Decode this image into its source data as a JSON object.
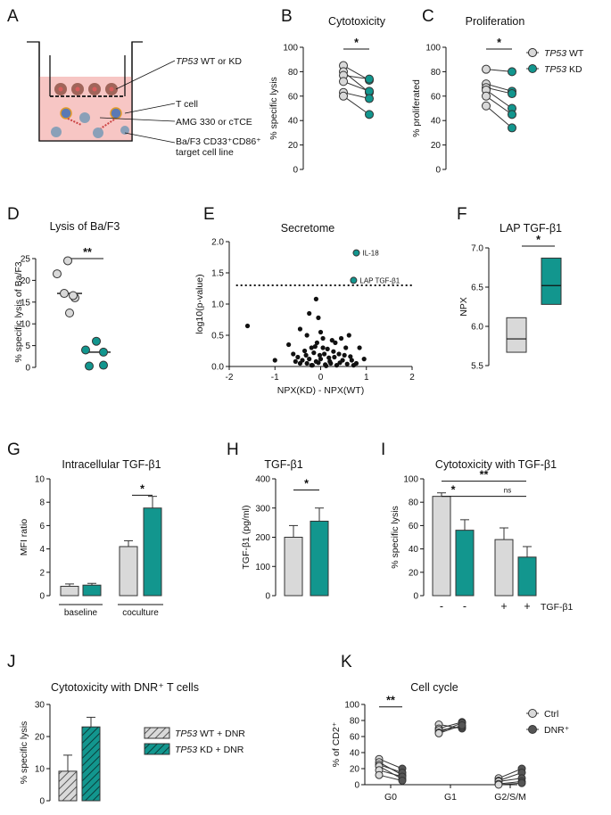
{
  "colors": {
    "wt": "#d9d9d9",
    "kd": "#12968e",
    "dark": "#333333",
    "bg_pink": "#f7c6c4"
  },
  "panels": {
    "A": {
      "letter": "A",
      "labels": {
        "wt_kd_italic": "TP53",
        "wt_kd_rest": " WT or KD",
        "tcell": "T cell",
        "amg": "AMG 330 or cTCE",
        "baf3_line1": "Ba/F3 CD33⁺CD86⁺",
        "baf3_line2": "target cell line"
      }
    },
    "B": {
      "letter": "B",
      "title": "Cytotoxicity",
      "ylabel": "% specific lysis",
      "yticks": [
        "0",
        "20",
        "40",
        "60",
        "80",
        "100"
      ],
      "sig": "*"
    },
    "C": {
      "letter": "C",
      "title": "Proliferation",
      "ylabel": "% proliferated",
      "yticks": [
        "0",
        "20",
        "40",
        "60",
        "80",
        "100"
      ],
      "sig": "*",
      "legend": [
        {
          "italic": "TP53",
          "rest": " WT"
        },
        {
          "italic": "TP53",
          "rest": " KD"
        }
      ]
    },
    "D": {
      "letter": "D",
      "title": "Lysis of Ba/F3",
      "ylabel": "% specific lysis of Ba/F3",
      "yticks": [
        "0",
        "5",
        "10",
        "15",
        "20",
        "25"
      ],
      "sig": "**"
    },
    "E": {
      "letter": "E",
      "title": "Secretome",
      "ylabel": "log10(p-value)",
      "xlabel": "NPX(KD) - NPX(WT)",
      "yticks": [
        "0.0",
        "0.5",
        "1.0",
        "1.5",
        "2.0"
      ],
      "xticks": [
        "-2",
        "-1",
        "0",
        "1",
        "2"
      ],
      "ann_il18": "IL-18",
      "ann_lap": "LAP TGF-β1"
    },
    "F": {
      "letter": "F",
      "title": "LAP TGF-β1",
      "ylabel": "NPX",
      "yticks": [
        "5.5",
        "6.0",
        "6.5",
        "7.0"
      ],
      "sig": "*"
    },
    "G": {
      "letter": "G",
      "title": "Intracellular TGF-β1",
      "ylabel": "MFI ratio",
      "yticks": [
        "0",
        "2",
        "4",
        "6",
        "8",
        "10"
      ],
      "groups": [
        "baseline",
        "coculture"
      ],
      "sig": "*"
    },
    "H": {
      "letter": "H",
      "title": "TGF-β1",
      "ylabel": "TGF-β1 (pg/ml)",
      "yticks": [
        "0",
        "100",
        "200",
        "300",
        "400"
      ],
      "sig": "*"
    },
    "I": {
      "letter": "I",
      "title": "Cytotoxicity with TGF-β1",
      "ylabel": "% specific lysis",
      "yticks": [
        "0",
        "20",
        "40",
        "60",
        "80",
        "100"
      ],
      "xsigns": [
        "-",
        "-",
        "+",
        "+"
      ],
      "xlabel_right": "TGF-β1",
      "sig1": "*",
      "sig2": "**",
      "sig3": "ns"
    },
    "J": {
      "letter": "J",
      "title": "Cytotoxicity with DNR⁺ T cells",
      "ylabel": "% specific lysis",
      "yticks": [
        "0",
        "10",
        "20",
        "30"
      ],
      "legend": [
        {
          "italic": "TP53",
          "rest": " WT + DNR"
        },
        {
          "italic": "TP53",
          "rest": " KD + DNR"
        }
      ]
    },
    "K": {
      "letter": "K",
      "title": "Cell cycle",
      "ylabel": "% of CD2⁺",
      "yticks": [
        "0",
        "20",
        "40",
        "60",
        "80",
        "100"
      ],
      "categories": [
        "G0",
        "G1",
        "G2/S/M"
      ],
      "sig": "**",
      "legend": [
        "Ctrl",
        "DNR⁺"
      ]
    }
  },
  "chart_data": [
    {
      "panel": "B",
      "type": "scatter",
      "title": "Cytotoxicity",
      "ylabel": "% specific lysis",
      "ylim": [
        0,
        100
      ],
      "categories": [
        "TP53 WT",
        "TP53 KD"
      ],
      "pairs": [
        [
          85,
          73
        ],
        [
          80,
          63
        ],
        [
          77,
          74
        ],
        [
          72,
          64
        ],
        [
          63,
          58
        ],
        [
          60,
          45
        ]
      ]
    },
    {
      "panel": "C",
      "type": "scatter",
      "title": "Proliferation",
      "ylabel": "% proliferated",
      "ylim": [
        0,
        100
      ],
      "categories": [
        "TP53 WT",
        "TP53 KD"
      ],
      "pairs": [
        [
          82,
          80
        ],
        [
          70,
          64
        ],
        [
          67,
          62
        ],
        [
          65,
          50
        ],
        [
          60,
          45
        ],
        [
          52,
          34
        ]
      ]
    },
    {
      "panel": "D",
      "type": "scatter",
      "title": "Lysis of Ba/F3",
      "ylabel": "% specific lysis of Ba/F3",
      "ylim": [
        0,
        25
      ],
      "series": [
        {
          "name": "TP53 WT",
          "values": [
            24.5,
            21.5,
            17,
            16,
            16.5,
            12.5
          ],
          "median": 17
        },
        {
          "name": "TP53 KD",
          "values": [
            6,
            4,
            3.5,
            0.3,
            0.5
          ],
          "median": 3.5
        }
      ]
    },
    {
      "panel": "E",
      "type": "scatter",
      "title": "Secretome",
      "xlabel": "NPX(KD) - NPX(WT)",
      "ylabel": "log10(p-value)",
      "xlim": [
        -2,
        2
      ],
      "ylim": [
        0,
        2
      ],
      "threshold": 1.3,
      "highlight": [
        {
          "label": "IL-18",
          "x": 0.78,
          "y": 1.82
        },
        {
          "label": "LAP TGF-β1",
          "x": 0.72,
          "y": 1.38
        }
      ],
      "points": [
        [
          -1.6,
          0.65
        ],
        [
          -1.0,
          0.1
        ],
        [
          -0.45,
          0.6
        ],
        [
          -0.3,
          0.5
        ],
        [
          -0.25,
          0.85
        ],
        [
          -0.1,
          1.08
        ],
        [
          -0.05,
          0.78
        ],
        [
          0.0,
          0.55
        ],
        [
          -0.08,
          0.38
        ],
        [
          0.05,
          0.45
        ],
        [
          -0.2,
          0.3
        ],
        [
          -0.35,
          0.25
        ],
        [
          -0.5,
          0.15
        ],
        [
          -0.4,
          0.1
        ],
        [
          -0.3,
          0.05
        ],
        [
          -0.2,
          0.02
        ],
        [
          -0.1,
          0.08
        ],
        [
          0.0,
          0.12
        ],
        [
          0.08,
          0.2
        ],
        [
          0.15,
          0.28
        ],
        [
          0.25,
          0.42
        ],
        [
          0.32,
          0.38
        ],
        [
          0.45,
          0.45
        ],
        [
          0.55,
          0.3
        ],
        [
          0.62,
          0.5
        ],
        [
          0.4,
          0.2
        ],
        [
          0.3,
          0.15
        ],
        [
          0.2,
          0.08
        ],
        [
          0.1,
          0.03
        ],
        [
          -0.02,
          0.18
        ],
        [
          -0.15,
          0.22
        ],
        [
          -0.25,
          0.12
        ],
        [
          -0.12,
          0.32
        ],
        [
          -0.45,
          0.05
        ],
        [
          -0.6,
          0.2
        ],
        [
          -0.7,
          0.35
        ],
        [
          0.12,
          0.01
        ],
        [
          0.22,
          0.05
        ],
        [
          0.35,
          0.02
        ],
        [
          0.48,
          0.1
        ],
        [
          0.52,
          0.18
        ],
        [
          0.68,
          0.1
        ],
        [
          0.78,
          0.05
        ],
        [
          0.85,
          0.3
        ],
        [
          0.95,
          0.12
        ],
        [
          0.72,
          0.02
        ],
        [
          0.05,
          0.3
        ],
        [
          -0.05,
          0.06
        ],
        [
          0.18,
          0.14
        ],
        [
          -0.32,
          0.18
        ],
        [
          -0.55,
          0.08
        ],
        [
          0.28,
          0.24
        ],
        [
          0.42,
          0.06
        ],
        [
          0.58,
          0.04
        ],
        [
          0.65,
          0.16
        ],
        [
          -0.18,
          0.02
        ]
      ]
    },
    {
      "panel": "F",
      "type": "box",
      "title": "LAP TGF-β1",
      "ylabel": "NPX",
      "ylim": [
        5.5,
        7.0
      ],
      "series": [
        {
          "name": "WT",
          "min": 5.67,
          "median": 5.84,
          "max": 6.11
        },
        {
          "name": "KD",
          "min": 6.28,
          "median": 6.52,
          "max": 6.87
        }
      ]
    },
    {
      "panel": "G",
      "type": "bar",
      "title": "Intracellular TGF-β1",
      "ylabel": "MFI ratio",
      "ylim": [
        0,
        10
      ],
      "categories": [
        "baseline",
        "coculture"
      ],
      "series": [
        {
          "name": "WT",
          "values": [
            0.8,
            4.2
          ],
          "errors": [
            0.2,
            0.5
          ]
        },
        {
          "name": "KD",
          "values": [
            0.9,
            7.5
          ],
          "errors": [
            0.15,
            1.0
          ]
        }
      ]
    },
    {
      "panel": "H",
      "type": "bar",
      "title": "TGF-β1",
      "ylabel": "TGF-β1 (pg/ml)",
      "ylim": [
        0,
        400
      ],
      "series": [
        {
          "name": "WT",
          "values": [
            200
          ],
          "errors": [
            40
          ]
        },
        {
          "name": "KD",
          "values": [
            255
          ],
          "errors": [
            45
          ]
        }
      ]
    },
    {
      "panel": "I",
      "type": "bar",
      "title": "Cytotoxicity with TGF-β1",
      "ylabel": "% specific lysis",
      "ylim": [
        0,
        100
      ],
      "categories": [
        "-",
        "-",
        "+",
        "+"
      ],
      "values": [
        85,
        56,
        48,
        33
      ],
      "errors": [
        3,
        9,
        10,
        9
      ],
      "colors": [
        "WT",
        "KD",
        "WT",
        "KD"
      ]
    },
    {
      "panel": "J",
      "type": "bar",
      "title": "Cytotoxicity with DNR⁺ T cells",
      "ylabel": "% specific lysis",
      "ylim": [
        0,
        30
      ],
      "series": [
        {
          "name": "TP53 WT + DNR",
          "values": [
            9.2
          ],
          "errors": [
            5
          ]
        },
        {
          "name": "TP53 KD + DNR",
          "values": [
            23
          ],
          "errors": [
            3
          ]
        }
      ]
    },
    {
      "panel": "K",
      "type": "line",
      "title": "Cell cycle",
      "ylabel": "% of CD2⁺",
      "ylim": [
        0,
        100
      ],
      "categories": [
        "G0",
        "G1",
        "G2/S/M"
      ],
      "pairs": {
        "G0": [
          [
            32,
            20
          ],
          [
            28,
            12
          ],
          [
            25,
            15
          ],
          [
            23,
            7
          ],
          [
            18,
            10
          ],
          [
            12,
            5
          ]
        ],
        "G1": [
          [
            75,
            70
          ],
          [
            70,
            78
          ],
          [
            68,
            72
          ],
          [
            65,
            77
          ],
          [
            64,
            74
          ]
        ],
        "G2/S/M": [
          [
            8,
            20
          ],
          [
            5,
            15
          ],
          [
            4,
            8
          ],
          [
            1,
            4
          ],
          [
            0,
            2
          ]
        ]
      }
    }
  ]
}
